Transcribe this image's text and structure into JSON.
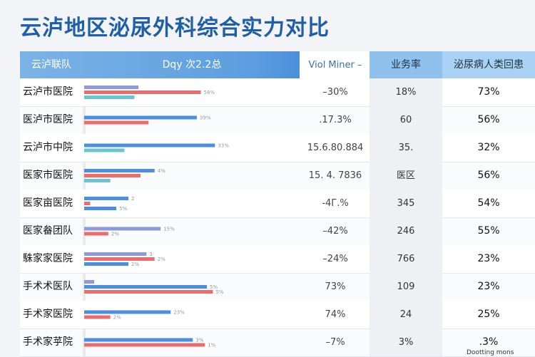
{
  "title": "云泸地区泌尿外科综合实力对比",
  "footnote": "Dootting mons",
  "header": {
    "col0": "云泸联队",
    "col1": "Dqy 次2.2总",
    "col2": "Viol Miner –",
    "col3": "业务率",
    "col4": "泌尿病人类回患"
  },
  "colors": {
    "blue": "#4a8fe0",
    "red": "#ec6b6b",
    "purple": "#8e9ad8",
    "teal": "#6cc4d0",
    "title": "#1f5fa8"
  },
  "chart_data": {
    "type": "table",
    "bar_max": 100,
    "rows": [
      {
        "name": "云泸市医院",
        "bars": [
          {
            "color": "purple",
            "value": 27
          },
          {
            "color": "red",
            "value": 58,
            "label": "58%"
          },
          {
            "color": "teal",
            "value": 25
          }
        ],
        "c2": "–30%",
        "c3": "18%",
        "c4": "73%"
      },
      {
        "name": "医泸市医院",
        "bars": [
          {
            "color": "blue",
            "value": 56,
            "label": "39%"
          },
          {
            "color": "red",
            "value": 32
          }
        ],
        "c2": ".17.3%",
        "c3": "60",
        "c4": "56%"
      },
      {
        "name": "云泸市中院",
        "bars": [
          {
            "color": "blue",
            "value": 65,
            "label": "33%"
          },
          {
            "color": "teal",
            "value": 20
          }
        ],
        "c2": "15.6.80.884",
        "c3": "35.",
        "c4": "32%"
      },
      {
        "name": "医家市医院",
        "bars": [
          {
            "color": "blue",
            "value": 35,
            "label": "4%"
          },
          {
            "color": "red",
            "value": 28
          },
          {
            "color": "teal",
            "value": 13
          }
        ],
        "c2": "15. 4. 7836",
        "c3": "医区",
        "c4": "56%"
      },
      {
        "name": "医家亩医院",
        "bars": [
          {
            "color": "blue",
            "value": 22,
            "label": "2"
          },
          {
            "color": "red",
            "value": 3
          },
          {
            "color": "blue",
            "value": 16,
            "label": "5%"
          }
        ],
        "c2": "-4Г.%",
        "c3": "345",
        "c4": "54%"
      },
      {
        "name": "医家畚团队",
        "bars": [
          {
            "color": "purple",
            "value": 38,
            "label": "15%"
          },
          {
            "color": "red",
            "value": 12,
            "label": "2%"
          }
        ],
        "c2": "–42%",
        "c3": "246",
        "c4": "55%"
      },
      {
        "name": "駯家家医院",
        "bars": [
          {
            "color": "purple",
            "value": 31,
            "label": "3"
          },
          {
            "color": "red",
            "value": 35,
            "label": "2%"
          },
          {
            "color": "blue",
            "value": 22,
            "label": "2%"
          }
        ],
        "c2": "–24%",
        "c3": "766",
        "c4": "23%"
      },
      {
        "name": "手术术医队",
        "bars": [
          {
            "color": "purple",
            "value": 5
          },
          {
            "color": "blue",
            "value": 61,
            "label": "5%"
          },
          {
            "color": "red",
            "value": 64,
            "label": "5%"
          }
        ],
        "c2": "73%",
        "c3": "109",
        "c4": "23%"
      },
      {
        "name": "手术家医院",
        "bars": [
          {
            "color": "blue",
            "value": 43,
            "label": "23%"
          },
          {
            "color": "red",
            "value": 13,
            "label": "2%"
          }
        ],
        "c2": "74%",
        "c3": "24",
        "c4": "25%"
      },
      {
        "name": "手术家苸院",
        "bars": [
          {
            "color": "blue",
            "value": 54,
            "label": "3%"
          },
          {
            "color": "red",
            "value": 60,
            "label": "1%"
          }
        ],
        "c2": "–7%",
        "c3": "3%",
        "c4": ".3%"
      }
    ]
  }
}
